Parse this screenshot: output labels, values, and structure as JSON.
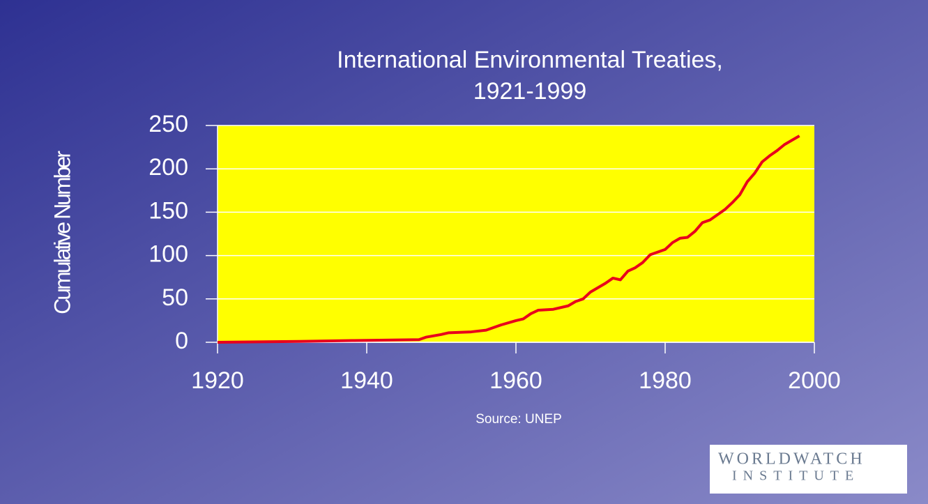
{
  "chart_data": {
    "type": "line",
    "title": "International Environmental Treaties,",
    "subtitle": "1921-1999",
    "y_label": "Cumulative Number",
    "source": "Source:  UNEP",
    "logo": [
      "WORLDWATCH",
      "INSTITUTE"
    ],
    "x": [
      1920,
      1931,
      1938,
      1947,
      1948,
      1950,
      1951,
      1954,
      1956,
      1958,
      1960,
      1961,
      1962,
      1963,
      1965,
      1967,
      1968,
      1969,
      1970,
      1972,
      1973,
      1974,
      1975,
      1976,
      1977,
      1978,
      1980,
      1981,
      1982,
      1983,
      1984,
      1985,
      1986,
      1987,
      1988,
      1989,
      1990,
      1991,
      1992,
      1993,
      1994,
      1995,
      1996,
      1997,
      1998
    ],
    "values": [
      0,
      1,
      2,
      3,
      6,
      9,
      11,
      12,
      14,
      20,
      25,
      27,
      33,
      37,
      38,
      42,
      47,
      50,
      58,
      68,
      74,
      72,
      82,
      86,
      92,
      101,
      107,
      115,
      120,
      121,
      128,
      138,
      141,
      147,
      153,
      161,
      170,
      185,
      195,
      208,
      215,
      221,
      228,
      233,
      238
    ],
    "color": "#e8001c",
    "xlim": [
      1920,
      2000
    ],
    "xticks": [
      1920,
      1940,
      1960,
      1980,
      2000
    ],
    "ylim": [
      0,
      250
    ],
    "yticks": [
      0,
      50,
      100,
      150,
      200,
      250
    ],
    "grid": true,
    "plot_color": "#ffff00"
  }
}
